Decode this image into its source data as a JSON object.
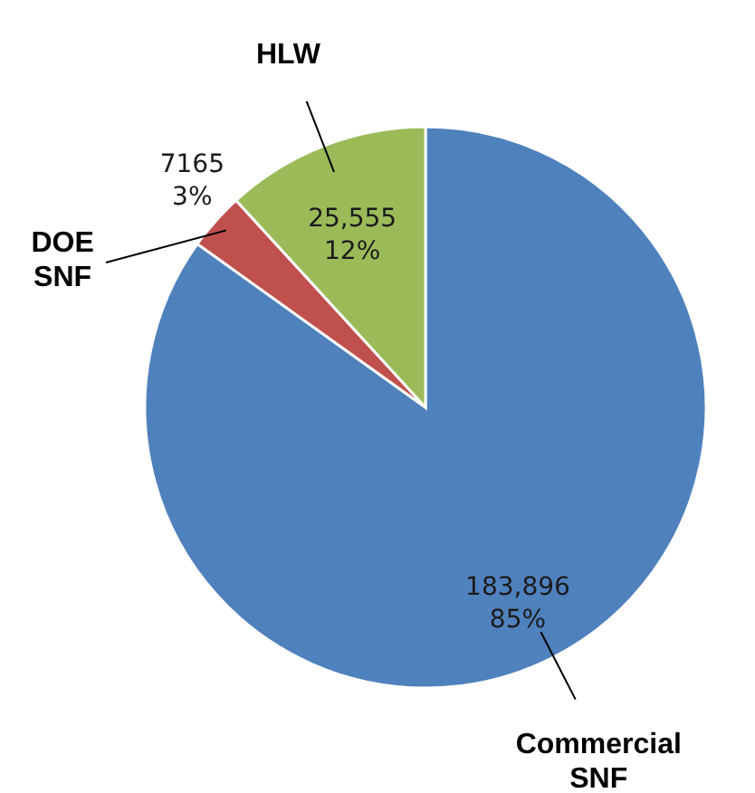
{
  "chart_data": {
    "type": "pie",
    "categories": [
      "Commercial SNF",
      "DOE SNF",
      "HLW"
    ],
    "values": [
      183896,
      7165,
      25555
    ],
    "colors": [
      "#4f81bd",
      "#c0504d",
      "#9bbb59"
    ],
    "value_labels": [
      "183,896 85%",
      "7165 3%",
      "25,555 12%"
    ]
  }
}
